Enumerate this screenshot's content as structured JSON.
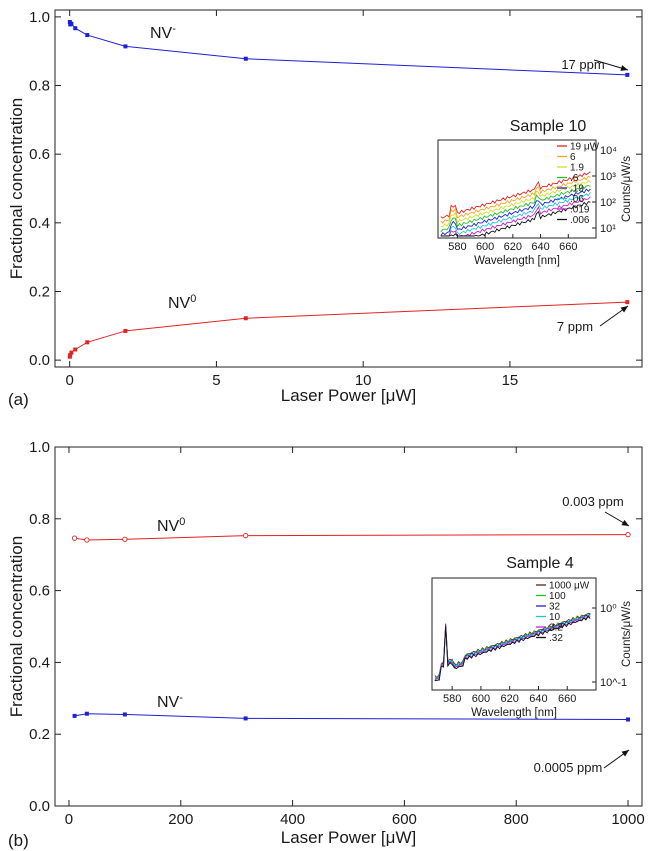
{
  "chart_data": [
    {
      "type": "line",
      "panel_label": "(a)",
      "xlabel": "Laser Power [μW]",
      "ylabel": "Fractional concentration",
      "xlim": [
        -0.5,
        19.5
      ],
      "ylim": [
        -0.02,
        1.02
      ],
      "xticks": [
        0,
        5,
        10,
        15
      ],
      "yticks": [
        0.0,
        0.2,
        0.4,
        0.6,
        0.8,
        1.0
      ],
      "xtick_labels": [
        "0",
        "5",
        "10",
        "15"
      ],
      "ytick_labels": [
        "0.0",
        "0.2",
        "0.4",
        "0.6",
        "0.8",
        "1.0"
      ],
      "grid": false,
      "series": [
        {
          "name": "NV-",
          "label_base": "NV",
          "label_sup": "-",
          "color": "#1f1fd6",
          "marker": "square",
          "x": [
            0.006,
            0.019,
            0.06,
            0.19,
            0.6,
            1.9,
            6.0,
            19.0
          ],
          "y": [
            0.985,
            0.978,
            0.98,
            0.967,
            0.947,
            0.914,
            0.878,
            0.831
          ]
        },
        {
          "name": "NV0",
          "label_base": "NV",
          "label_sup": "0",
          "color": "#e52222",
          "marker": "square",
          "x": [
            0.006,
            0.019,
            0.06,
            0.19,
            0.6,
            1.9,
            6.0,
            19.0
          ],
          "y": [
            0.01,
            0.015,
            0.022,
            0.031,
            0.052,
            0.085,
            0.122,
            0.169
          ]
        }
      ],
      "annotations": [
        {
          "text": "17 ppm",
          "x": 19.0,
          "y": 0.831
        },
        {
          "text": "7 ppm",
          "x": 19.0,
          "y": 0.169
        }
      ],
      "inset": {
        "title": "Sample 10",
        "xlabel": "Wavelength [nm]",
        "ylabel": "Counts/μW/s",
        "xticks": [
          "580",
          "600",
          "620",
          "640",
          "660"
        ],
        "yticks": [
          "10¹",
          "10²",
          "10³",
          "10⁴"
        ],
        "legend": [
          {
            "label": "19 μW",
            "color": "#e52222"
          },
          {
            "label": "6",
            "color": "#f5a623"
          },
          {
            "label": "1.9",
            "color": "#d9d92b"
          },
          {
            "label": ".6",
            "color": "#22c422"
          },
          {
            "label": ".19",
            "color": "#1f1fd6"
          },
          {
            "label": ".06",
            "color": "#22c4d6"
          },
          {
            "label": ".019",
            "color": "#c922c9"
          },
          {
            "label": ".006",
            "color": "#111111"
          }
        ]
      }
    },
    {
      "type": "line",
      "panel_label": "(b)",
      "xlabel": "Laser Power [μW]",
      "ylabel": "Fractional concentration",
      "xlim": [
        -25,
        1025
      ],
      "ylim": [
        0.0,
        1.0
      ],
      "xticks": [
        0,
        200,
        400,
        600,
        800,
        1000
      ],
      "yticks": [
        0.0,
        0.2,
        0.4,
        0.6,
        0.8,
        1.0
      ],
      "xtick_labels": [
        "0",
        "200",
        "400",
        "600",
        "800",
        "1000"
      ],
      "ytick_labels": [
        "0.0",
        "0.2",
        "0.4",
        "0.6",
        "0.8",
        "1.0"
      ],
      "grid": false,
      "series": [
        {
          "name": "NV0",
          "label_base": "NV",
          "label_sup": "0",
          "color": "#e52222",
          "marker": "open-circle",
          "x": [
            10,
            32,
            100,
            316,
            1000
          ],
          "y": [
            0.746,
            0.741,
            0.743,
            0.753,
            0.756
          ]
        },
        {
          "name": "NV-",
          "label_base": "NV",
          "label_sup": "-",
          "color": "#1f1fd6",
          "marker": "square",
          "x": [
            10,
            32,
            100,
            316,
            1000
          ],
          "y": [
            0.251,
            0.257,
            0.255,
            0.244,
            0.241
          ]
        }
      ],
      "annotations": [
        {
          "text": "0.003 ppm",
          "x": 1000,
          "y": 0.756
        },
        {
          "text": "0.0005 ppm",
          "x": 1000,
          "y": 0.241
        }
      ],
      "inset": {
        "title": "Sample 4",
        "xlabel": "Wavelength [nm]",
        "ylabel": "Counts/μW/s",
        "xticks": [
          "580",
          "600",
          "620",
          "640",
          "660"
        ],
        "yticks": [
          "10^-1",
          "10⁰"
        ],
        "legend": [
          {
            "label": "1000 μW",
            "color": "#6b1a1a"
          },
          {
            "label": "100",
            "color": "#22c422"
          },
          {
            "label": "32",
            "color": "#1f1fd6"
          },
          {
            "label": "10",
            "color": "#22c4d6"
          },
          {
            "label": "3.2",
            "color": "#c922c9"
          },
          {
            "label": ".32",
            "color": "#111111"
          }
        ]
      }
    }
  ]
}
